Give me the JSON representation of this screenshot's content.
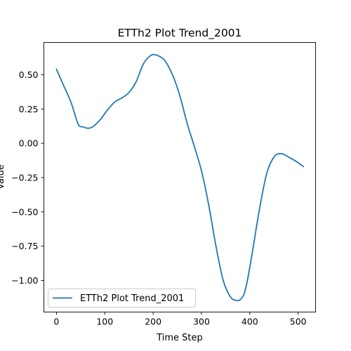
{
  "chart_data": {
    "type": "line",
    "title": "ETTh2 Plot Trend_2001",
    "xlabel": "Time Step",
    "ylabel": "Value",
    "xlim": [
      -26,
      536
    ],
    "ylim": [
      -1.23,
      0.735
    ],
    "xticks": [
      0,
      100,
      200,
      300,
      400,
      500
    ],
    "yticks": [
      0.5,
      0.25,
      0.0,
      -0.25,
      -0.5,
      -0.75,
      -1.0
    ],
    "ytick_labels": [
      "0.50",
      "0.25",
      "0.00",
      "−0.25",
      "−0.50",
      "−0.75",
      "−1.00"
    ],
    "grid": false,
    "legend_position": "lower-left",
    "series": [
      {
        "name": "ETTh2 Plot Trend_2001",
        "color": "#1f77b4",
        "x": [
          0,
          15,
          30,
          45,
          55,
          65,
          75,
          90,
          105,
          120,
          135,
          150,
          165,
          180,
          195,
          205,
          215,
          225,
          240,
          255,
          270,
          285,
          300,
          315,
          330,
          345,
          360,
          372,
          380,
          388,
          395,
          405,
          420,
          435,
          450,
          465,
          480,
          495,
          511
        ],
        "y": [
          0.54,
          0.42,
          0.3,
          0.14,
          0.12,
          0.11,
          0.12,
          0.17,
          0.24,
          0.3,
          0.33,
          0.37,
          0.45,
          0.58,
          0.64,
          0.645,
          0.63,
          0.6,
          0.5,
          0.35,
          0.15,
          -0.02,
          -0.2,
          -0.45,
          -0.75,
          -1.0,
          -1.12,
          -1.145,
          -1.14,
          -1.1,
          -1.0,
          -0.8,
          -0.48,
          -0.22,
          -0.1,
          -0.075,
          -0.1,
          -0.13,
          -0.17
        ]
      }
    ]
  }
}
